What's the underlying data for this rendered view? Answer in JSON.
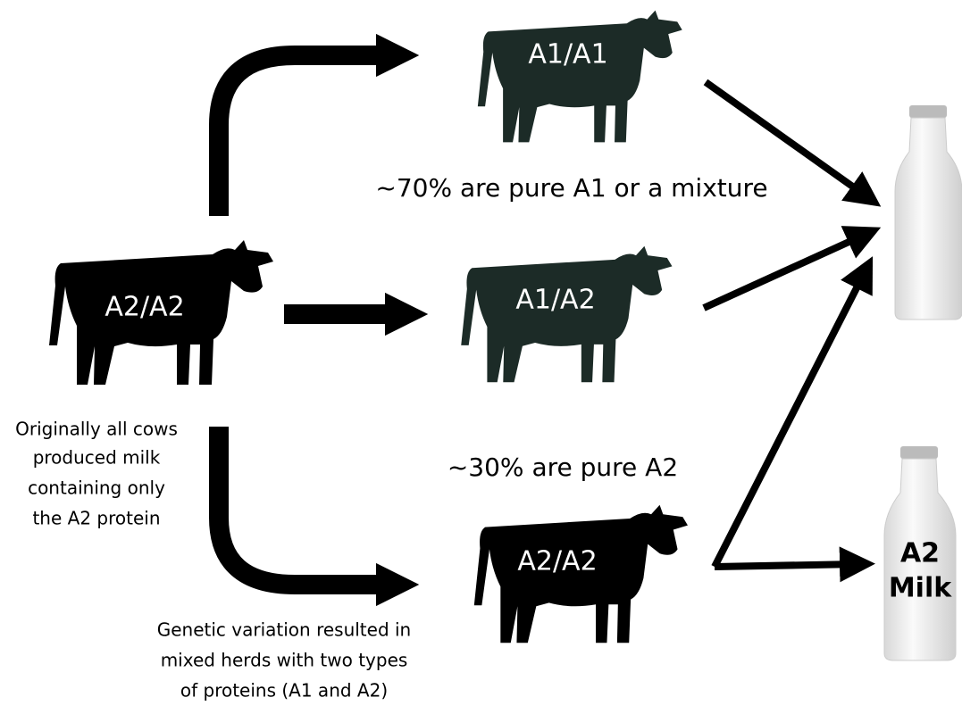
{
  "source": {
    "label": "A2/A2",
    "caption": [
      "Originally all cows",
      "produced milk",
      "containing only",
      "the A2 protein"
    ]
  },
  "nodes": [
    {
      "label": "A1/A1"
    },
    {
      "label": "A1/A2"
    },
    {
      "label": "A2/A2"
    }
  ],
  "notes": {
    "mixture": "~70% are pure A1 or a mixture",
    "pure": "~30% are pure A2",
    "variation": [
      "Genetic variation resulted in",
      "mixed herds with two types",
      "of proteins (A1 and A2)"
    ]
  },
  "bottle": {
    "label": [
      "A2",
      "Milk"
    ]
  }
}
